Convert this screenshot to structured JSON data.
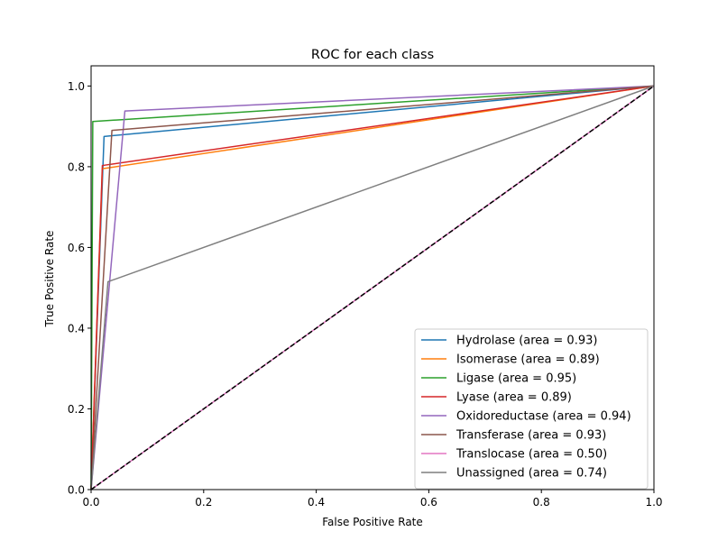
{
  "chart_data": {
    "type": "line",
    "title": "ROC for each class",
    "xlabel": "False Positive Rate",
    "ylabel": "True Positive Rate",
    "xlim": [
      0.0,
      1.0
    ],
    "ylim": [
      0.0,
      1.05
    ],
    "xticks": [
      "0.0",
      "0.2",
      "0.4",
      "0.6",
      "0.8",
      "1.0"
    ],
    "yticks": [
      "0.0",
      "0.2",
      "0.4",
      "0.6",
      "0.8",
      "1.0"
    ],
    "grid": false,
    "legend_position": "lower-right",
    "series": [
      {
        "name": "Hydrolase (area = 0.93)",
        "color": "#1f77b4",
        "x": [
          0,
          0.023,
          1
        ],
        "y": [
          0,
          0.875,
          1
        ]
      },
      {
        "name": "Isomerase (area = 0.89)",
        "color": "#ff7f0e",
        "x": [
          0,
          0.02,
          1
        ],
        "y": [
          0,
          0.795,
          1
        ]
      },
      {
        "name": "Ligase (area = 0.95)",
        "color": "#2ca02c",
        "x": [
          0,
          0.003,
          1
        ],
        "y": [
          0,
          0.912,
          1
        ]
      },
      {
        "name": "Lyase (area = 0.89)",
        "color": "#d62728",
        "x": [
          0,
          0.02,
          1
        ],
        "y": [
          0,
          0.803,
          1
        ]
      },
      {
        "name": "Oxidoreductase (area = 0.94)",
        "color": "#9467bd",
        "x": [
          0,
          0.06,
          1
        ],
        "y": [
          0,
          0.938,
          1
        ]
      },
      {
        "name": "Transferase (area = 0.93)",
        "color": "#8c564b",
        "x": [
          0,
          0.037,
          1
        ],
        "y": [
          0,
          0.89,
          1
        ]
      },
      {
        "name": "Translocase (area = 0.50)",
        "color": "#e377c2",
        "x": [
          0,
          1
        ],
        "y": [
          0,
          1
        ]
      },
      {
        "name": "Unassigned (area = 0.74)",
        "color": "#7f7f7f",
        "x": [
          0,
          0.03,
          1
        ],
        "y": [
          0,
          0.515,
          1
        ]
      }
    ],
    "reference_line": {
      "style": "dashed",
      "color": "#000000",
      "x": [
        0,
        1
      ],
      "y": [
        0,
        1
      ]
    }
  }
}
